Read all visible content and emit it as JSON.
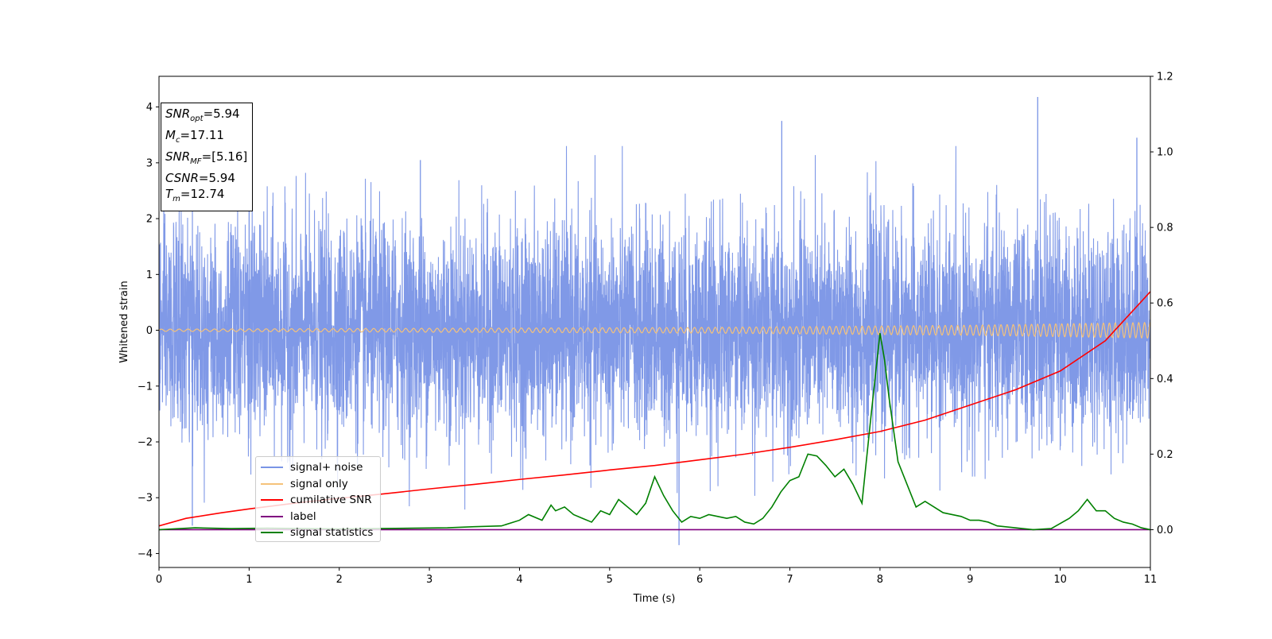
{
  "chart_data": {
    "type": "line",
    "xlabel": "Time (s)",
    "ylabel": "Whitened strain",
    "xlim": [
      0,
      11
    ],
    "ylim": [
      -4.25,
      4.55
    ],
    "y2lim": [
      -0.1,
      1.2
    ],
    "xticks": [
      "0",
      "1",
      "2",
      "3",
      "4",
      "5",
      "6",
      "7",
      "8",
      "9",
      "10",
      "11"
    ],
    "yticks": [
      "−4",
      "−3",
      "−2",
      "−1",
      "0",
      "1",
      "2",
      "3",
      "4"
    ],
    "y2ticks": [
      "0.0",
      "0.2",
      "0.4",
      "0.6",
      "0.8",
      "1.0",
      "1.2"
    ],
    "grid": false,
    "legend_placement": "lower-left",
    "info_box": [
      {
        "sym": "SNR",
        "sub": "opt",
        "val": "=5.94"
      },
      {
        "sym": "M",
        "sub": "c",
        "val": "=17.11"
      },
      {
        "sym": "SNR",
        "sub": "MF",
        "val": "=[5.16]"
      },
      {
        "sym": "CSNR",
        "sub": "",
        "val": "=5.94"
      },
      {
        "sym": "T",
        "sub": "m",
        "val": "=12.74"
      }
    ],
    "series": [
      {
        "name": "signal+ noise",
        "color": "#7994e6",
        "axis": "left",
        "description_points": [
          [
            0.37,
            -3.5
          ],
          [
            1.0,
            2.7
          ],
          [
            2.9,
            3.05
          ],
          [
            5.77,
            -3.85
          ],
          [
            6.91,
            3.75
          ],
          [
            9.75,
            4.18
          ],
          [
            10.85,
            3.45
          ]
        ]
      },
      {
        "name": "signal only",
        "color": "#f5c27a",
        "axis": "left",
        "amplitude_envelope": [
          [
            0,
            0.02
          ],
          [
            6,
            0.05
          ],
          [
            9,
            0.09
          ],
          [
            11,
            0.14
          ]
        ]
      },
      {
        "name": "cumilative SNR",
        "color": "#ff0000",
        "axis": "right",
        "x": [
          0,
          0.3,
          0.7,
          1,
          1.5,
          2,
          2.5,
          3,
          3.5,
          4,
          4.5,
          5,
          5.5,
          6,
          6.5,
          7,
          7.5,
          8,
          8.5,
          9,
          9.5,
          10,
          10.5,
          11
        ],
        "y": [
          0.01,
          0.03,
          0.045,
          0.055,
          0.07,
          0.083,
          0.095,
          0.108,
          0.12,
          0.133,
          0.145,
          0.158,
          0.17,
          0.185,
          0.2,
          0.218,
          0.238,
          0.26,
          0.29,
          0.33,
          0.37,
          0.42,
          0.5,
          0.63
        ]
      },
      {
        "name": "label",
        "color": "#800080",
        "axis": "right",
        "x": [
          0,
          11
        ],
        "y": [
          0,
          0
        ]
      },
      {
        "name": "signal statistics",
        "color": "#008000",
        "axis": "right",
        "x": [
          0,
          0.4,
          0.8,
          1.2,
          1.6,
          2,
          2.4,
          2.8,
          3.2,
          3.5,
          3.8,
          4,
          4.1,
          4.25,
          4.35,
          4.4,
          4.5,
          4.6,
          4.7,
          4.8,
          4.9,
          5,
          5.1,
          5.2,
          5.3,
          5.4,
          5.5,
          5.6,
          5.7,
          5.8,
          5.9,
          6,
          6.1,
          6.2,
          6.3,
          6.4,
          6.5,
          6.6,
          6.7,
          6.8,
          6.9,
          7,
          7.1,
          7.2,
          7.3,
          7.4,
          7.5,
          7.6,
          7.7,
          7.8,
          7.9,
          8,
          8.05,
          8.1,
          8.2,
          8.3,
          8.4,
          8.5,
          8.6,
          8.7,
          8.8,
          8.9,
          9,
          9.1,
          9.2,
          9.3,
          9.5,
          9.7,
          9.9,
          10.1,
          10.2,
          10.3,
          10.4,
          10.5,
          10.6,
          10.7,
          10.8,
          10.9,
          11
        ],
        "y": [
          0.0,
          0.005,
          0.003,
          0.004,
          0.003,
          0.002,
          0.003,
          0.004,
          0.005,
          0.008,
          0.01,
          0.025,
          0.04,
          0.025,
          0.065,
          0.05,
          0.06,
          0.04,
          0.03,
          0.02,
          0.05,
          0.04,
          0.08,
          0.06,
          0.04,
          0.07,
          0.14,
          0.09,
          0.05,
          0.02,
          0.035,
          0.03,
          0.04,
          0.035,
          0.03,
          0.035,
          0.02,
          0.015,
          0.03,
          0.06,
          0.1,
          0.13,
          0.14,
          0.2,
          0.195,
          0.17,
          0.14,
          0.16,
          0.12,
          0.07,
          0.3,
          0.52,
          0.45,
          0.35,
          0.18,
          0.12,
          0.06,
          0.075,
          0.06,
          0.045,
          0.04,
          0.035,
          0.025,
          0.025,
          0.02,
          0.01,
          0.005,
          0.0,
          0.003,
          0.03,
          0.05,
          0.08,
          0.05,
          0.05,
          0.03,
          0.02,
          0.015,
          0.005,
          0.0
        ]
      }
    ]
  }
}
